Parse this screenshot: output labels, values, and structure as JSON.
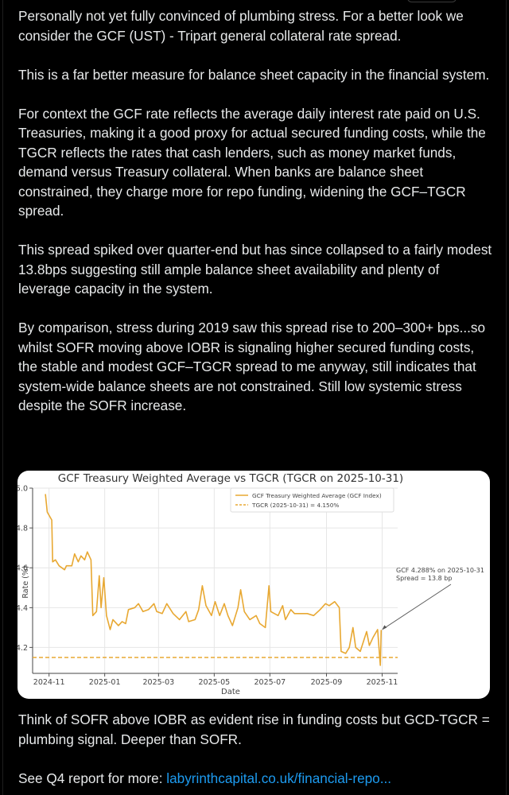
{
  "post": {
    "paragraphs": [
      "Personally not yet fully convinced of plumbing stress. For a better look we consider the GCF (UST) - Tripart general collateral rate spread.",
      "This is a far better measure for balance sheet capacity in the financial system.",
      "For context the GCF rate reflects the average daily interest rate paid on U.S. Treasuries, making it a good proxy for actual secured funding costs, while the TGCR reflects the rates that cash lenders, such as money market funds, demand versus Treasury collateral. When banks are balance sheet constrained, they charge more for repo funding, widening the GCF–TGCR spread.",
      "This spread spiked over quarter-end but has since collapsed to a fairly modest 13.8bps suggesting still ample balance sheet availability and plenty of leverage capacity in the system.",
      "By comparison, stress during 2019 saw this spread rise to 200–300+ bps...so whilst SOFR moving above IOBR is signaling higher secured funding costs, the stable and modest GCF–TGCR spread to me anyway, still indicates that system-wide balance sheets are not constrained. Still low systemic stress despite the SOFR increase."
    ],
    "after_paragraphs": [
      "Think of SOFR above IOBR as evident rise in funding costs but GCD-TGCR = plumbing signal. Deeper than SOFR."
    ],
    "link_prefix": "See Q4 report for more: ",
    "link_text": "labyrinthcapital.co.uk/financial-repo..."
  },
  "chart_data": {
    "type": "line",
    "title": "GCF Treasury Weighted Average vs TGCR (TGCR on 2025-10-31)",
    "xlabel": "Date",
    "ylabel": "Rate (%)",
    "ylim": [
      4.07,
      5.0
    ],
    "yticks": [
      "5.0",
      "4.8",
      "4.6",
      "4.4",
      "4.2"
    ],
    "xticks": [
      "2024-11",
      "2025-01",
      "2025-03",
      "2025-05",
      "2025-07",
      "2025-09",
      "2025-11"
    ],
    "grid": true,
    "legend_position": "upper right",
    "colors": {
      "gcf": "#e8a832",
      "tgcr": "#e8a832",
      "annotation": "#555555"
    },
    "series": [
      {
        "name": "GCF Treasury Weighted Average (GCF Index)",
        "style": "solid",
        "points": [
          [
            "2024-10-28",
            4.97
          ],
          [
            "2024-10-30",
            4.88
          ],
          [
            "2024-11-04",
            4.84
          ],
          [
            "2024-11-05",
            4.63
          ],
          [
            "2024-11-08",
            4.64
          ],
          [
            "2024-11-12",
            4.61
          ],
          [
            "2024-11-18",
            4.59
          ],
          [
            "2024-11-20",
            4.61
          ],
          [
            "2024-11-26",
            4.61
          ],
          [
            "2024-11-29",
            4.67
          ],
          [
            "2024-12-03",
            4.63
          ],
          [
            "2024-12-06",
            4.66
          ],
          [
            "2024-12-10",
            4.64
          ],
          [
            "2024-12-13",
            4.68
          ],
          [
            "2024-12-17",
            4.64
          ],
          [
            "2024-12-19",
            4.36
          ],
          [
            "2024-12-23",
            4.38
          ],
          [
            "2024-12-26",
            4.56
          ],
          [
            "2024-12-28",
            4.4
          ],
          [
            "2024-12-31",
            4.55
          ],
          [
            "2025-01-03",
            4.36
          ],
          [
            "2025-01-07",
            4.29
          ],
          [
            "2025-01-10",
            4.34
          ],
          [
            "2025-01-16",
            4.31
          ],
          [
            "2025-01-20",
            4.33
          ],
          [
            "2025-01-24",
            4.32
          ],
          [
            "2025-01-27",
            4.39
          ],
          [
            "2025-02-03",
            4.4
          ],
          [
            "2025-02-07",
            4.42
          ],
          [
            "2025-02-12",
            4.38
          ],
          [
            "2025-02-18",
            4.39
          ],
          [
            "2025-02-24",
            4.42
          ],
          [
            "2025-02-27",
            4.38
          ],
          [
            "2025-03-05",
            4.37
          ],
          [
            "2025-03-10",
            4.42
          ],
          [
            "2025-03-17",
            4.37
          ],
          [
            "2025-03-24",
            4.34
          ],
          [
            "2025-03-31",
            4.38
          ],
          [
            "2025-04-03",
            4.33
          ],
          [
            "2025-04-10",
            4.34
          ],
          [
            "2025-04-14",
            4.39
          ],
          [
            "2025-04-18",
            4.51
          ],
          [
            "2025-04-22",
            4.41
          ],
          [
            "2025-04-28",
            4.36
          ],
          [
            "2025-05-02",
            4.43
          ],
          [
            "2025-05-07",
            4.36
          ],
          [
            "2025-05-12",
            4.42
          ],
          [
            "2025-05-16",
            4.36
          ],
          [
            "2025-05-21",
            4.31
          ],
          [
            "2025-05-27",
            4.4
          ],
          [
            "2025-05-30",
            4.49
          ],
          [
            "2025-06-03",
            4.38
          ],
          [
            "2025-06-09",
            4.34
          ],
          [
            "2025-06-16",
            4.36
          ],
          [
            "2025-06-20",
            4.32
          ],
          [
            "2025-06-26",
            4.3
          ],
          [
            "2025-06-30",
            4.51
          ],
          [
            "2025-07-02",
            4.38
          ],
          [
            "2025-07-10",
            4.36
          ],
          [
            "2025-07-15",
            4.41
          ],
          [
            "2025-07-18",
            4.34
          ],
          [
            "2025-07-24",
            4.39
          ],
          [
            "2025-07-28",
            4.37
          ],
          [
            "2025-08-04",
            4.37
          ],
          [
            "2025-08-11",
            4.37
          ],
          [
            "2025-08-18",
            4.36
          ],
          [
            "2025-08-25",
            4.39
          ],
          [
            "2025-08-31",
            4.42
          ],
          [
            "2025-09-04",
            4.41
          ],
          [
            "2025-09-10",
            4.43
          ],
          [
            "2025-09-15",
            4.4
          ],
          [
            "2025-09-17",
            4.18
          ],
          [
            "2025-09-22",
            4.17
          ],
          [
            "2025-09-26",
            4.2
          ],
          [
            "2025-09-30",
            4.3
          ],
          [
            "2025-10-03",
            4.2
          ],
          [
            "2025-10-08",
            4.18
          ],
          [
            "2025-10-15",
            4.28
          ],
          [
            "2025-10-18",
            4.21
          ],
          [
            "2025-10-22",
            4.25
          ],
          [
            "2025-10-27",
            4.29
          ],
          [
            "2025-10-30",
            4.11
          ],
          [
            "2025-10-31",
            4.288
          ]
        ]
      },
      {
        "name": "TGCR (2025-10-31) = 4.150%",
        "style": "dashed",
        "value": 4.15
      }
    ],
    "legend": [
      "GCF Treasury Weighted Average (GCF Index)",
      "TGCR (2025-10-31) = 4.150%"
    ],
    "annotation": {
      "line1": "GCF 4.288% on 2025-10-31",
      "line2": "Spread = 13.8 bp",
      "target_date": "2025-10-31",
      "target_value": 4.288
    }
  }
}
